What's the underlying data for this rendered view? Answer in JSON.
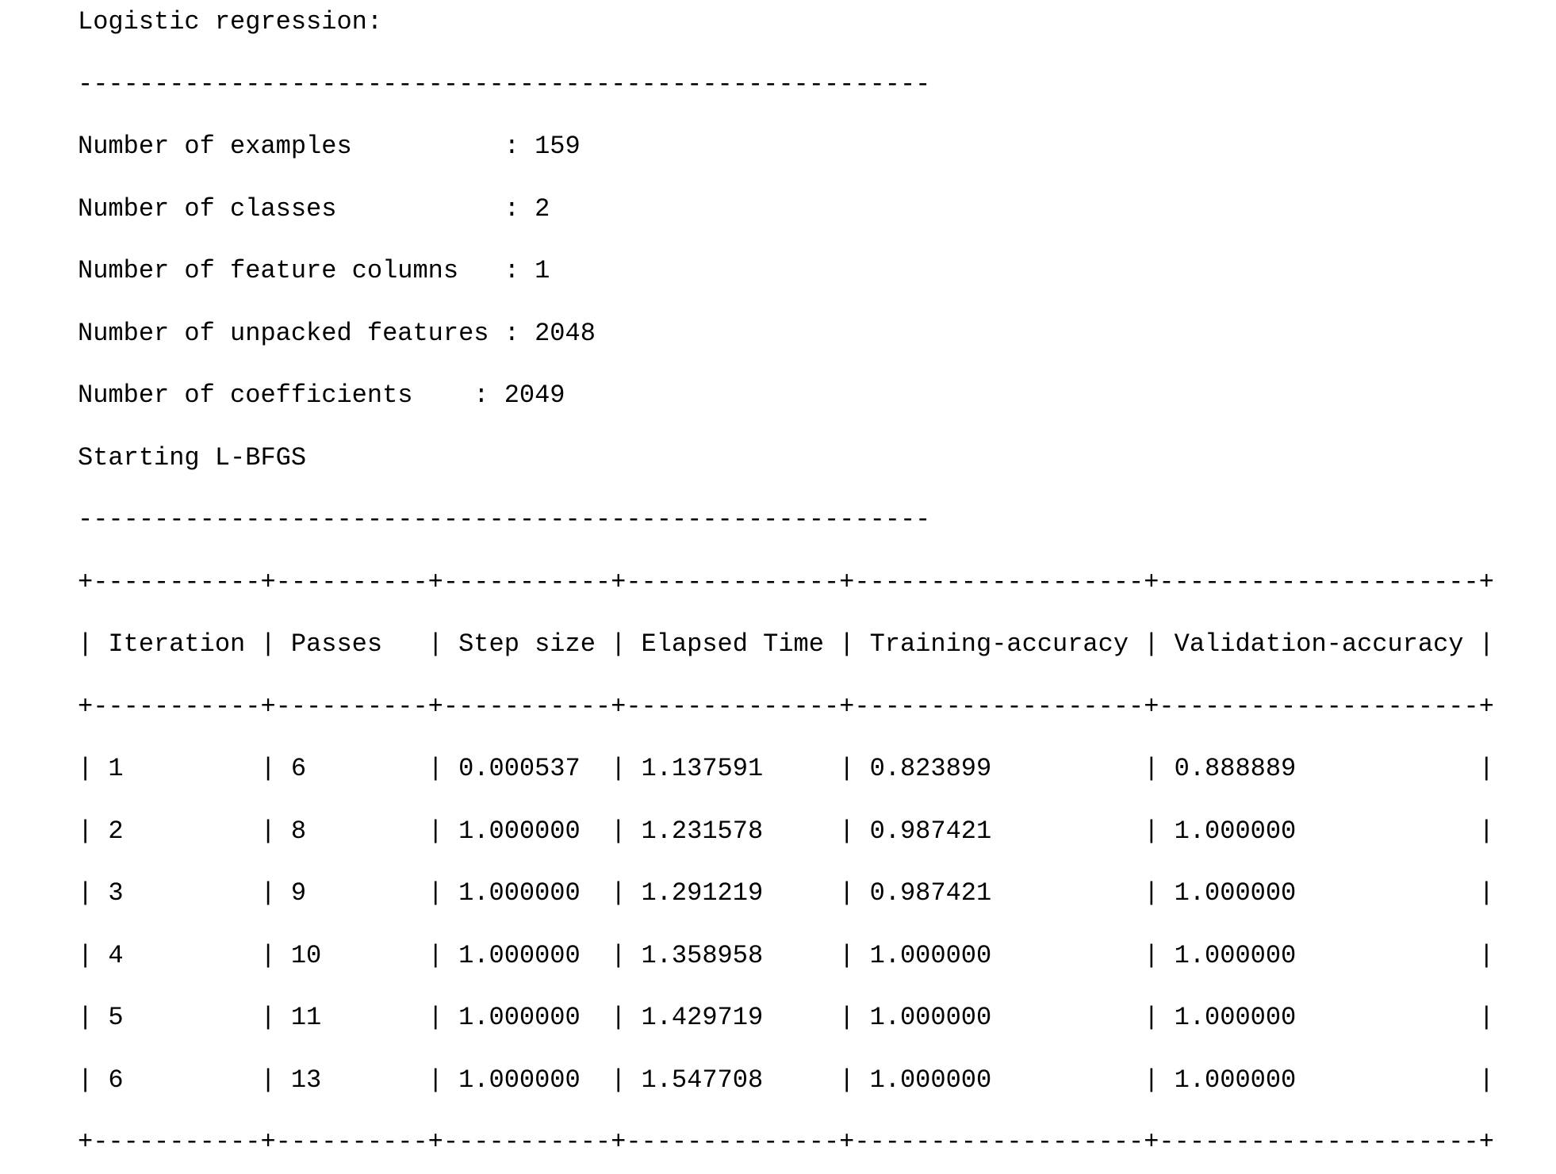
{
  "title": "Logistic regression:",
  "divider": "--------------------------------------------------------",
  "stats": [
    "Number of examples          : 159",
    "Number of classes           : 2",
    "Number of feature columns   : 1",
    "Number of unpacked features : 2048",
    "Number of coefficients    : 2049"
  ],
  "status": "Starting L-BFGS",
  "table": {
    "border": "+-----------+----------+-----------+--------------+-------------------+---------------------+",
    "separator": "|",
    "headers": [
      "Iteration",
      "Passes",
      "Step size",
      "Elapsed Time",
      "Training-accuracy",
      "Validation-accuracy"
    ],
    "rows": [
      [
        "1",
        "6",
        "0.000537",
        "1.137591",
        "0.823899",
        "0.888889"
      ],
      [
        "2",
        "8",
        "1.000000",
        "1.231578",
        "0.987421",
        "1.000000"
      ],
      [
        "3",
        "9",
        "1.000000",
        "1.291219",
        "0.987421",
        "1.000000"
      ],
      [
        "4",
        "10",
        "1.000000",
        "1.358958",
        "1.000000",
        "1.000000"
      ],
      [
        "5",
        "11",
        "1.000000",
        "1.429719",
        "1.000000",
        "1.000000"
      ],
      [
        "6",
        "13",
        "1.000000",
        "1.547708",
        "1.000000",
        "1.000000"
      ]
    ]
  }
}
